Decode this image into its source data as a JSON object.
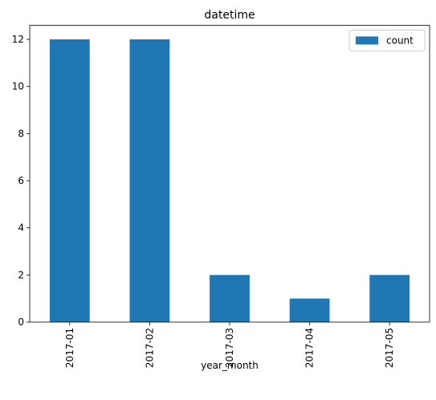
{
  "chart_data": {
    "type": "bar",
    "title": "datetime",
    "x_label": "year_month",
    "categories": [
      "2017-01",
      "2017-02",
      "2017-03",
      "2017-04",
      "2017-05"
    ],
    "series": [
      {
        "name": "count",
        "color": "#1f77b4",
        "values": [
          12,
          12,
          2,
          1,
          2
        ]
      }
    ],
    "ylim": [
      0,
      12.6
    ],
    "yticks": [
      0,
      2,
      4,
      6,
      8,
      10,
      12
    ],
    "grid": false,
    "legend": "upper right"
  }
}
